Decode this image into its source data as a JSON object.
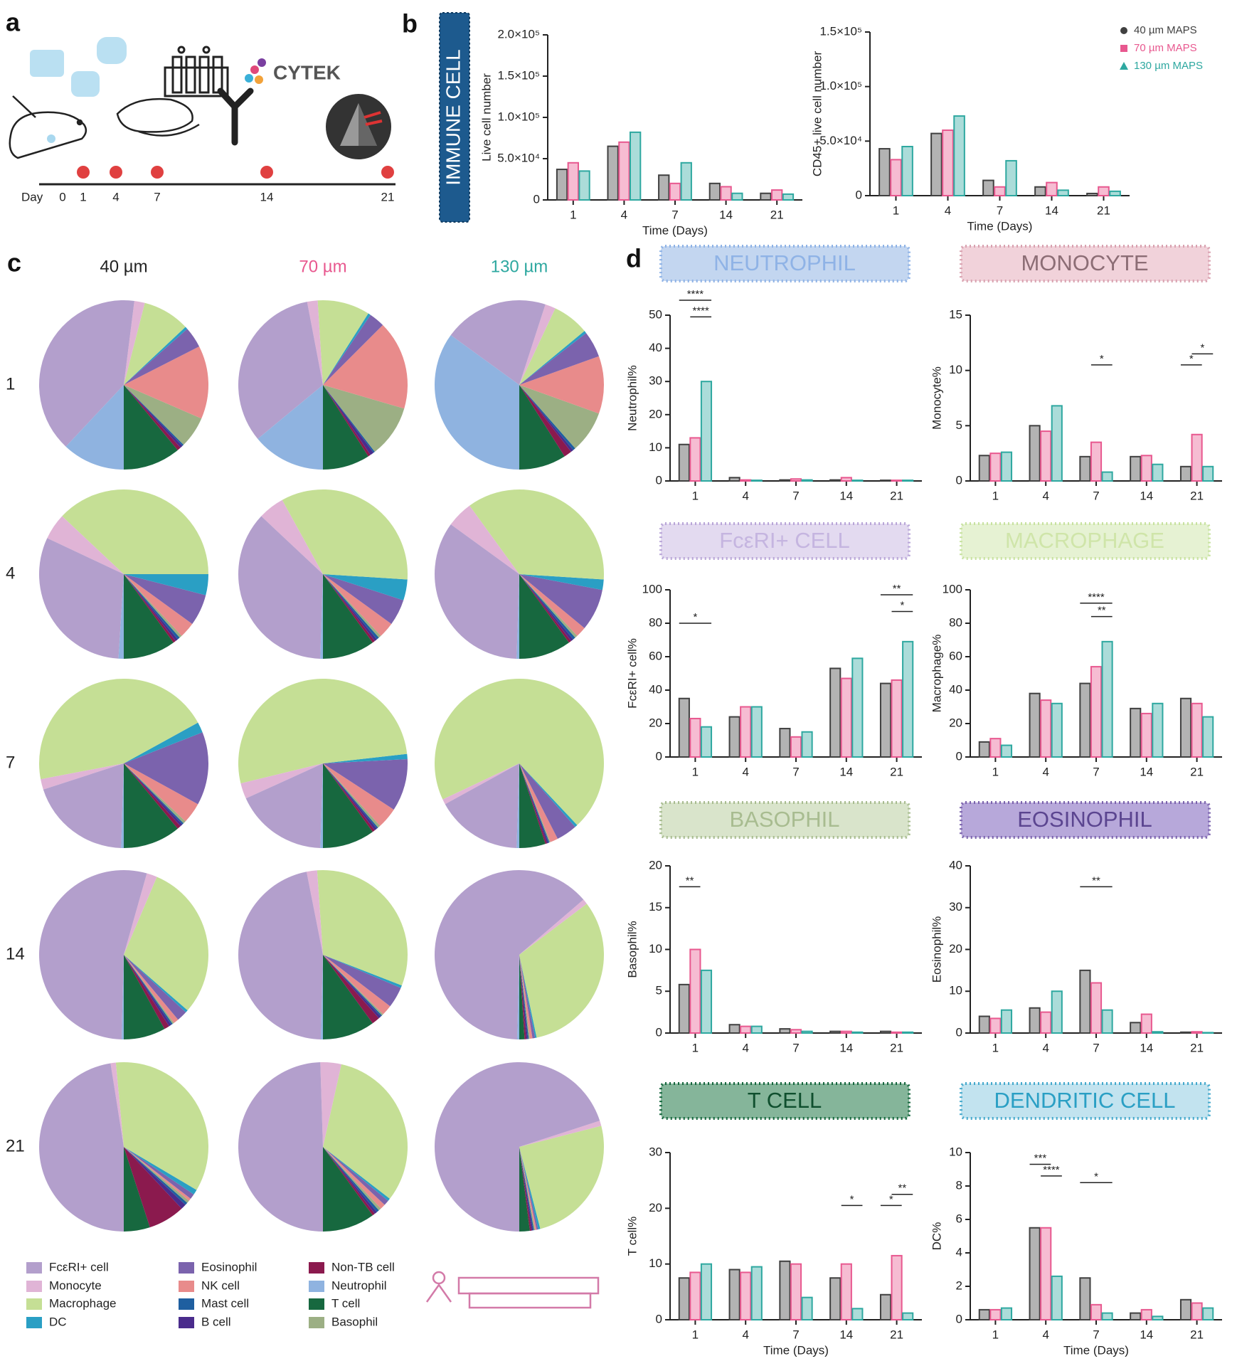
{
  "panel_labels": [
    "a",
    "b",
    "c",
    "d"
  ],
  "timeline": {
    "label": "Day",
    "days": [
      "0",
      "1",
      "4",
      "7",
      "14",
      "21"
    ]
  },
  "logo": "CYTEK",
  "panel_b_banner": "IMMUNE CELL",
  "chart_data": [
    {
      "type": "bar",
      "ylabel": "Live cell number",
      "xlabel": "Time (Days)",
      "categories": [
        "1",
        "4",
        "7",
        "14",
        "21"
      ],
      "ylim": [
        0,
        200000
      ],
      "yticks": [
        0,
        {
          "value": 50000,
          "label": "5.0×10⁴"
        },
        {
          "value": 100000,
          "label": "1.0×10⁵"
        },
        {
          "value": 150000,
          "label": "1.5×10⁵"
        },
        {
          "value": 200000,
          "label": "2.0×10⁵"
        }
      ],
      "series": [
        {
          "color": "#404040",
          "values": [
            37000,
            65000,
            30000,
            20000,
            8000
          ]
        },
        {
          "color": "#e8588f",
          "values": [
            45000,
            70000,
            20000,
            16000,
            12000
          ]
        },
        {
          "color": "#2ea8a0",
          "values": [
            35000,
            82000,
            45000,
            8000,
            7000
          ]
        }
      ]
    },
    {
      "type": "bar",
      "ylabel": "CD45+ live cell number",
      "xlabel": "Time (Days)",
      "categories": [
        "1",
        "4",
        "7",
        "14",
        "21"
      ],
      "ylim": [
        0,
        150000
      ],
      "yticks": [
        0,
        {
          "value": 50000,
          "label": "5.0×10⁴"
        },
        {
          "value": 100000,
          "label": "1.0×10⁵"
        },
        {
          "value": 150000,
          "label": "1.5×10⁵"
        }
      ],
      "legend": "upper right",
      "series": [
        {
          "name": "40 µm MAPS",
          "color": "#404040",
          "marker": "circle",
          "values": [
            43000,
            57000,
            14000,
            8000,
            2000
          ]
        },
        {
          "name": "70 µm MAPS",
          "color": "#e8588f",
          "marker": "square",
          "values": [
            33000,
            60000,
            8000,
            12000,
            8000
          ]
        },
        {
          "name": "130 µm MAPS",
          "color": "#2ea8a0",
          "marker": "triangle",
          "values": [
            45000,
            73000,
            32000,
            5000,
            4000
          ]
        }
      ]
    },
    {
      "type": "pie",
      "row_labels": [
        "1",
        "4",
        "7",
        "14",
        "21"
      ],
      "column_labels": [
        "40 µm",
        "70 µm",
        "130 µm"
      ],
      "column_colors": [
        "#222222",
        "#e8588f",
        "#2ea8a0"
      ],
      "categories": [
        "T cell",
        "Non-TB cell",
        "B cell",
        "Mast cell",
        "Basophil",
        "NK cell",
        "Eosinophil",
        "DC",
        "Macrophage",
        "Monocyte",
        "FcεRI+ cell",
        "Neutrophil"
      ],
      "colors": [
        "#17683f",
        "#8b1a4e",
        "#4a2c8c",
        "#1f5fa0",
        "#9caf84",
        "#e88b8b",
        "#7b63ad",
        "#2a9fc4",
        "#c5df95",
        "#e0b4d6",
        "#b39fcc",
        "#8fb3e0"
      ],
      "values": [
        [
          [
            11,
            0.7,
            0.5,
            0.3,
            6,
            14,
            4,
            0.5,
            9,
            2,
            40,
            12
          ],
          [
            9,
            0.5,
            0.7,
            0.3,
            10,
            17,
            3,
            0.5,
            10,
            2,
            33,
            14
          ],
          [
            9,
            1.5,
            0.5,
            0.5,
            8,
            11,
            5,
            0.5,
            7,
            2,
            20,
            35
          ]
        ],
        [
          [
            10,
            0.5,
            0.5,
            0.5,
            0.5,
            3,
            6,
            4,
            38,
            5,
            31,
            1
          ],
          [
            10,
            0.5,
            0.5,
            0.5,
            0.5,
            3,
            5,
            4,
            34,
            5,
            36.5,
            0.5
          ],
          [
            10,
            0.5,
            0.5,
            0.5,
            0.5,
            2,
            8,
            2,
            36,
            5,
            34.5,
            0.5
          ]
        ],
        [
          [
            11,
            0.7,
            0.5,
            0.3,
            0.5,
            4,
            14,
            2,
            45,
            2,
            19.5,
            0.5
          ],
          [
            10,
            0.5,
            0.5,
            0.3,
            0.5,
            4,
            10,
            1,
            52,
            3,
            17.7,
            0.5
          ],
          [
            5,
            0.3,
            0.3,
            0.2,
            0.2,
            1.5,
            4,
            0.5,
            70,
            1,
            16.5,
            0.5
          ]
        ],
        [
          [
            8,
            1,
            0.5,
            0.3,
            0.3,
            1,
            2,
            0.5,
            30,
            2,
            54,
            0.4
          ],
          [
            10,
            1.5,
            0.5,
            0.3,
            0.3,
            2,
            4,
            0.5,
            32,
            2,
            46.5,
            0.4
          ],
          [
            1,
            0.3,
            0.3,
            0.2,
            0.2,
            0.5,
            0.5,
            0.3,
            32,
            1,
            63.3,
            0.4
          ]
        ],
        [
          [
            5,
            7,
            1,
            0.5,
            0.5,
            0.5,
            1,
            1,
            35,
            1,
            47.5,
            0
          ],
          [
            10,
            0.5,
            0.5,
            0.5,
            0.5,
            1,
            1,
            0.5,
            32,
            4,
            49.5,
            0
          ],
          [
            2,
            0.3,
            0.3,
            0.2,
            0.2,
            0.3,
            0.3,
            0.4,
            25,
            1,
            70,
            0
          ]
        ]
      ]
    },
    {
      "type": "bar",
      "banner": {
        "text": "NEUTROPHIL",
        "color": "#c3d6f0",
        "border": "#8fb3e6",
        "text_color": "#8fb3e6"
      },
      "ylabel": "Neutrophil%",
      "categories": [
        "1",
        "4",
        "7",
        "14",
        "21"
      ],
      "ylim": [
        0,
        50
      ],
      "yticks": [
        0,
        10,
        20,
        30,
        40,
        50
      ],
      "series": [
        {
          "name": "40 µm MAPS",
          "color": "#404040",
          "values": [
            11,
            1,
            0.3,
            0.3,
            0.2
          ]
        },
        {
          "name": "70 µm MAPS",
          "color": "#e8588f",
          "values": [
            13,
            0.3,
            0.6,
            1,
            0.2
          ]
        },
        {
          "name": "130 µm MAPS",
          "color": "#2ea8a0",
          "values": [
            30,
            0.2,
            0.3,
            0.2,
            0.2
          ]
        }
      ],
      "annotations": [
        {
          "text": "****",
          "category": "1",
          "from": "40 µm MAPS",
          "to": "130 µm MAPS",
          "y": 54.5
        },
        {
          "text": "****",
          "category": "1",
          "from": "70 µm MAPS",
          "to": "130 µm MAPS",
          "y": 49.5
        }
      ]
    },
    {
      "type": "bar",
      "banner": {
        "text": "MONOCYTE",
        "color": "#f1d2da",
        "border": "#d9a2b0",
        "text_color": "#8c6d75"
      },
      "ylabel": "Monocyte%",
      "categories": [
        "1",
        "4",
        "7",
        "14",
        "21"
      ],
      "ylim": [
        0,
        15
      ],
      "yticks": [
        0,
        5,
        10,
        15
      ],
      "series": [
        {
          "name": "40 µm MAPS",
          "color": "#404040",
          "values": [
            2.3,
            5,
            2.2,
            2.2,
            1.3
          ]
        },
        {
          "name": "70 µm MAPS",
          "color": "#e8588f",
          "values": [
            2.5,
            4.5,
            3.5,
            2.3,
            4.2
          ]
        },
        {
          "name": "130 µm MAPS",
          "color": "#2ea8a0",
          "values": [
            2.6,
            6.8,
            0.8,
            1.5,
            1.3
          ]
        }
      ],
      "annotations": [
        {
          "text": "*",
          "category": "7",
          "from": "70 µm MAPS",
          "to": "130 µm MAPS",
          "y": 10.5
        },
        {
          "text": "*",
          "category": "21",
          "from": "40 µm MAPS",
          "to": "70 µm MAPS",
          "y": 10.5
        },
        {
          "text": "*",
          "category": "21",
          "from": "70 µm MAPS",
          "to": "130 µm MAPS",
          "y": 11.5
        }
      ]
    },
    {
      "type": "bar",
      "banner": {
        "text": "FcεRI+ CELL",
        "color": "#e3daf0",
        "border": "#b9a6d8",
        "text_color": "#c5b5e0"
      },
      "ylabel": "FcεRI+ cell%",
      "categories": [
        "1",
        "4",
        "7",
        "14",
        "21"
      ],
      "ylim": [
        0,
        100
      ],
      "yticks": [
        0,
        20,
        40,
        60,
        80,
        100
      ],
      "series": [
        {
          "name": "40 µm MAPS",
          "color": "#404040",
          "values": [
            35,
            24,
            17,
            53,
            44
          ]
        },
        {
          "name": "70 µm MAPS",
          "color": "#e8588f",
          "values": [
            23,
            30,
            12,
            47,
            46
          ]
        },
        {
          "name": "130 µm MAPS",
          "color": "#2ea8a0",
          "values": [
            18,
            30,
            15,
            59,
            69
          ]
        }
      ],
      "annotations": [
        {
          "text": "*",
          "category": "1",
          "from": "40 µm MAPS",
          "to": "130 µm MAPS",
          "y": 80
        },
        {
          "text": "**",
          "category": "21",
          "from": "40 µm MAPS",
          "to": "130 µm MAPS",
          "y": 97
        },
        {
          "text": "*",
          "category": "21",
          "from": "70 µm MAPS",
          "to": "130 µm MAPS",
          "y": 87
        }
      ]
    },
    {
      "type": "bar",
      "banner": {
        "text": "MACROPHAGE",
        "color": "#e6f2d3",
        "border": "#c8e2a0",
        "text_color": "#cfe5a9"
      },
      "ylabel": "Macrophage%",
      "categories": [
        "1",
        "4",
        "7",
        "14",
        "21"
      ],
      "ylim": [
        0,
        100
      ],
      "yticks": [
        0,
        20,
        40,
        60,
        80,
        100
      ],
      "series": [
        {
          "name": "40 µm MAPS",
          "color": "#404040",
          "values": [
            9,
            38,
            44,
            29,
            35
          ]
        },
        {
          "name": "70 µm MAPS",
          "color": "#e8588f",
          "values": [
            11,
            34,
            54,
            26,
            32
          ]
        },
        {
          "name": "130 µm MAPS",
          "color": "#2ea8a0",
          "values": [
            7,
            32,
            69,
            32,
            24
          ]
        }
      ],
      "annotations": [
        {
          "text": "****",
          "category": "7",
          "from": "40 µm MAPS",
          "to": "130 µm MAPS",
          "y": 92
        },
        {
          "text": "**",
          "category": "7",
          "from": "70 µm MAPS",
          "to": "130 µm MAPS",
          "y": 84
        }
      ]
    },
    {
      "type": "bar",
      "banner": {
        "text": "BASOPHIL",
        "color": "#d9e4cb",
        "border": "#a8bc90",
        "text_color": "#a8bc90"
      },
      "ylabel": "Basophil%",
      "categories": [
        "1",
        "4",
        "7",
        "14",
        "21"
      ],
      "ylim": [
        0,
        20
      ],
      "yticks": [
        0,
        5,
        10,
        15,
        20
      ],
      "series": [
        {
          "name": "40 µm MAPS",
          "color": "#404040",
          "values": [
            5.8,
            1,
            0.5,
            0.2,
            0.2
          ]
        },
        {
          "name": "70 µm MAPS",
          "color": "#e8588f",
          "values": [
            10,
            0.8,
            0.4,
            0.2,
            0.1
          ]
        },
        {
          "name": "130 µm MAPS",
          "color": "#2ea8a0",
          "values": [
            7.5,
            0.8,
            0.2,
            0.1,
            0.1
          ]
        }
      ],
      "annotations": [
        {
          "text": "**",
          "category": "1",
          "from": "40 µm MAPS",
          "to": "70 µm MAPS",
          "y": 17.5
        }
      ]
    },
    {
      "type": "bar",
      "banner": {
        "text": "EOSINOPHIL",
        "color": "#b7a8da",
        "border": "#7b63ad",
        "text_color": "#5b4590"
      },
      "ylabel": "Eosinophil%",
      "categories": [
        "1",
        "4",
        "7",
        "14",
        "21"
      ],
      "ylim": [
        0,
        40
      ],
      "yticks": [
        0,
        10,
        20,
        30,
        40
      ],
      "series": [
        {
          "name": "40 µm MAPS",
          "color": "#404040",
          "values": [
            4,
            6,
            15,
            2.5,
            0.2
          ]
        },
        {
          "name": "70 µm MAPS",
          "color": "#e8588f",
          "values": [
            3.5,
            5,
            12,
            4.5,
            0.3
          ]
        },
        {
          "name": "130 µm MAPS",
          "color": "#2ea8a0",
          "values": [
            5.5,
            10,
            5.5,
            0.3,
            0.1
          ]
        }
      ],
      "annotations": [
        {
          "text": "**",
          "category": "7",
          "from": "40 µm MAPS",
          "to": "130 µm MAPS",
          "y": 35
        }
      ]
    },
    {
      "type": "bar",
      "banner": {
        "text": "T CELL",
        "color": "#85b59a",
        "border": "#17683f",
        "text_color": "#0f4f2e"
      },
      "ylabel": "T cell%",
      "xlabel": "Time (Days)",
      "categories": [
        "1",
        "4",
        "7",
        "14",
        "21"
      ],
      "ylim": [
        0,
        30
      ],
      "yticks": [
        0,
        10,
        20,
        30
      ],
      "series": [
        {
          "name": "40 µm MAPS",
          "color": "#404040",
          "values": [
            7.5,
            9,
            10.5,
            7.5,
            4.5
          ]
        },
        {
          "name": "70 µm MAPS",
          "color": "#e8588f",
          "values": [
            8.5,
            8.5,
            10,
            10,
            11.5
          ]
        },
        {
          "name": "130 µm MAPS",
          "color": "#2ea8a0",
          "values": [
            10,
            9.5,
            4,
            2,
            1.2
          ]
        }
      ],
      "annotations": [
        {
          "text": "*",
          "category": "14",
          "from": "70 µm MAPS",
          "to": "130 µm MAPS",
          "y": 20.5
        },
        {
          "text": "*",
          "category": "21",
          "from": "40 µm MAPS",
          "to": "70 µm MAPS",
          "y": 20.5
        },
        {
          "text": "**",
          "category": "21",
          "from": "70 µm MAPS",
          "to": "130 µm MAPS",
          "y": 22.5
        }
      ]
    },
    {
      "type": "bar",
      "banner": {
        "text": "DENDRITIC CELL",
        "color": "#c2e3ef",
        "border": "#45a9cc",
        "text_color": "#2a9fc4"
      },
      "ylabel": "DC%",
      "xlabel": "Time (Days)",
      "categories": [
        "1",
        "4",
        "7",
        "14",
        "21"
      ],
      "ylim": [
        0,
        10
      ],
      "yticks": [
        0,
        2,
        4,
        6,
        8,
        10
      ],
      "series": [
        {
          "name": "40 µm MAPS",
          "color": "#404040",
          "values": [
            0.6,
            5.5,
            2.5,
            0.4,
            1.2
          ]
        },
        {
          "name": "70 µm MAPS",
          "color": "#e8588f",
          "values": [
            0.6,
            5.5,
            0.9,
            0.6,
            1
          ]
        },
        {
          "name": "130 µm MAPS",
          "color": "#2ea8a0",
          "values": [
            0.7,
            2.6,
            0.4,
            0.2,
            0.7
          ]
        }
      ],
      "annotations": [
        {
          "text": "***",
          "category": "4",
          "from": "40 µm MAPS",
          "to": "70 µm MAPS",
          "y": 9.3
        },
        {
          "text": "****",
          "category": "4",
          "from": "70 µm MAPS",
          "to": "130 µm MAPS",
          "y": 8.6
        },
        {
          "text": "*",
          "category": "7",
          "from": "40 µm MAPS",
          "to": "130 µm MAPS",
          "y": 8.2
        }
      ]
    }
  ]
}
